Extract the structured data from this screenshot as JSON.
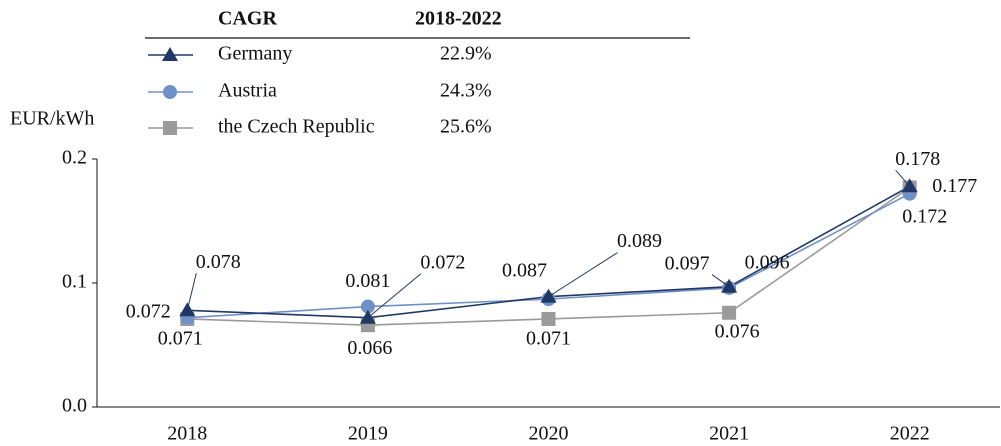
{
  "chart_data": {
    "type": "line",
    "y_label": "EUR/kWh",
    "legend_header": [
      "CAGR",
      "2018-2022"
    ],
    "categories": [
      "2018",
      "2019",
      "2020",
      "2021",
      "2022"
    ],
    "series": [
      {
        "name": "Germany",
        "color": "#1f3864",
        "marker": "triangle",
        "cagr": "22.9%",
        "values": [
          0.078,
          0.072,
          0.089,
          0.097,
          0.178
        ]
      },
      {
        "name": "Austria",
        "color": "#7090c8",
        "marker": "circle",
        "cagr": "24.3%",
        "values": [
          0.072,
          0.081,
          0.087,
          0.096,
          0.172
        ]
      },
      {
        "name": "the Czech Republic",
        "color": "#9a9a9a",
        "marker": "square",
        "cagr": "25.6%",
        "values": [
          0.071,
          0.066,
          0.071,
          0.076,
          0.177
        ]
      }
    ],
    "ylim": [
      0,
      0.2
    ],
    "yticks": [
      {
        "value": 0,
        "label": "0.0"
      },
      0.1,
      0.2
    ]
  }
}
